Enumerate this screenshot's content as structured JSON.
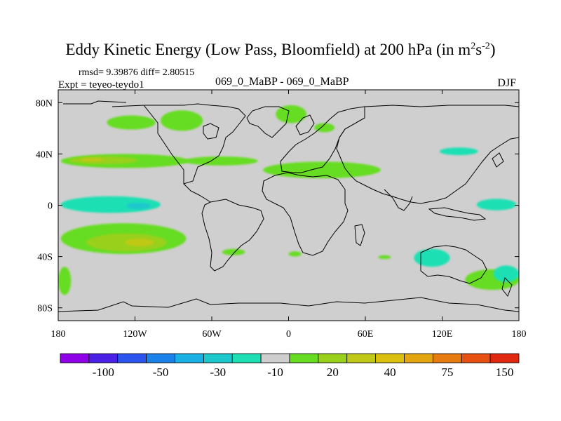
{
  "chart_data": {
    "type": "heatmap",
    "title": "Eddy Kinetic Energy (Low Pass, Bloomfield) at 200 hPa (in m",
    "title_unit_sup1": "2",
    "title_unit_mid": "s",
    "title_unit_sup2": "-2",
    "title_unit_end": ")",
    "stats_line": "rmsd= 9.39876 diff= 2.80515",
    "expt_label": "Expt = teyeo-teydo1",
    "case_label": "069_0_MaBP - 069_0_MaBP",
    "season": "DJF",
    "xlim": [
      -180,
      180
    ],
    "ylim": [
      -90,
      90
    ],
    "x_ticks": [
      {
        "value": -180,
        "label": "180"
      },
      {
        "value": -120,
        "label": "120W"
      },
      {
        "value": -60,
        "label": "60W"
      },
      {
        "value": 0,
        "label": "0"
      },
      {
        "value": 60,
        "label": "60E"
      },
      {
        "value": 120,
        "label": "120E"
      },
      {
        "value": 180,
        "label": "180"
      }
    ],
    "y_ticks": [
      {
        "value": 80,
        "label": "80N"
      },
      {
        "value": 40,
        "label": "40N"
      },
      {
        "value": 0,
        "label": "0"
      },
      {
        "value": -40,
        "label": "40S"
      },
      {
        "value": -80,
        "label": "80S"
      }
    ],
    "colorbar": {
      "colors": [
        "#8f00e8",
        "#4b20e6",
        "#2b55ee",
        "#1b82ea",
        "#1ab0e6",
        "#1cc8cc",
        "#1ee0b4",
        "#cfcfcf",
        "#66dd22",
        "#98d01c",
        "#c0c818",
        "#dcc010",
        "#e4a610",
        "#e67c10",
        "#e65010",
        "#e02810"
      ],
      "labels": [
        {
          "boundary": 2,
          "text": "-100"
        },
        {
          "boundary": 4,
          "text": "-50"
        },
        {
          "boundary": 6,
          "text": "-30"
        },
        {
          "boundary": 8,
          "text": "-10"
        },
        {
          "boundary": 10,
          "text": "20"
        },
        {
          "boundary": 12,
          "text": "40"
        },
        {
          "boundary": 14,
          "text": "75"
        },
        {
          "boundary": 16,
          "text": "150"
        }
      ]
    },
    "regions": [
      {
        "name": "north-pacific-band",
        "lon": [
          -178,
          -78
        ],
        "lat": [
          29,
          40
        ],
        "level": 1
      },
      {
        "name": "north-pacific-high",
        "lon": [
          -172,
          -118
        ],
        "lat": [
          32,
          38
        ],
        "level": 2
      },
      {
        "name": "north-pacific-core",
        "lon": [
          -163,
          -145
        ],
        "lat": [
          34,
          37
        ],
        "level": 3
      },
      {
        "name": "alaska-blob",
        "lon": [
          -142,
          -104
        ],
        "lat": [
          59,
          70
        ],
        "level": 1
      },
      {
        "name": "canada-blob",
        "lon": [
          -100,
          -67
        ],
        "lat": [
          58,
          74
        ],
        "level": 1
      },
      {
        "name": "atlantic-band",
        "lon": [
          -82,
          -24
        ],
        "lat": [
          31,
          38
        ],
        "level": 1
      },
      {
        "name": "greenland-blob",
        "lon": [
          -10,
          14
        ],
        "lat": [
          64,
          78
        ],
        "level": 1
      },
      {
        "name": "mediterranean-band",
        "lon": [
          -20,
          72
        ],
        "lat": [
          21,
          34
        ],
        "level": 1
      },
      {
        "name": "siberia-spot",
        "lon": [
          20,
          36
        ],
        "lat": [
          57,
          64
        ],
        "level": 1
      },
      {
        "name": "nw-pacific-cyan",
        "lon": [
          118,
          148
        ],
        "lat": [
          39,
          45
        ],
        "level": -1
      },
      {
        "name": "equatorial-pacific-cyan",
        "lon": [
          -178,
          -100
        ],
        "lat": [
          -6,
          7
        ],
        "level": -1
      },
      {
        "name": "equatorial-pacific-blue",
        "lon": [
          -127,
          -108
        ],
        "lat": [
          -3,
          2
        ],
        "level": -2
      },
      {
        "name": "west-pacific-cyan",
        "lon": [
          147,
          178
        ],
        "lat": [
          -4,
          5
        ],
        "level": -1
      },
      {
        "name": "south-pacific-band",
        "lon": [
          -178,
          -80
        ],
        "lat": [
          -38,
          -14
        ],
        "level": 1
      },
      {
        "name": "south-pacific-high",
        "lon": [
          -158,
          -95
        ],
        "lat": [
          -36,
          -22
        ],
        "level": 2
      },
      {
        "name": "south-pacific-core",
        "lon": [
          -128,
          -105
        ],
        "lat": [
          -32,
          -26
        ],
        "level": 3
      },
      {
        "name": "south-atlantic-spot",
        "lon": [
          -52,
          -34
        ],
        "lat": [
          -39,
          -34
        ],
        "level": 1
      },
      {
        "name": "south-atlantic-spot-2",
        "lon": [
          0,
          10
        ],
        "lat": [
          -40,
          -36
        ],
        "level": 1
      },
      {
        "name": "indian-ocean-cyan",
        "lon": [
          98,
          126
        ],
        "lat": [
          -48,
          -34
        ],
        "level": -1
      },
      {
        "name": "south-indian-spot",
        "lon": [
          70,
          80
        ],
        "lat": [
          -42,
          -39
        ],
        "level": 1
      },
      {
        "name": "southern-ocean-band",
        "lon": [
          138,
          180
        ],
        "lat": [
          -66,
          -50
        ],
        "level": 1
      },
      {
        "name": "southern-ocean-cyan",
        "lon": [
          160,
          180
        ],
        "lat": [
          -60,
          -47
        ],
        "level": -1
      },
      {
        "name": "far-south-pacific",
        "lon": [
          -180,
          -170
        ],
        "lat": [
          -70,
          -48
        ],
        "level": 1
      }
    ]
  }
}
